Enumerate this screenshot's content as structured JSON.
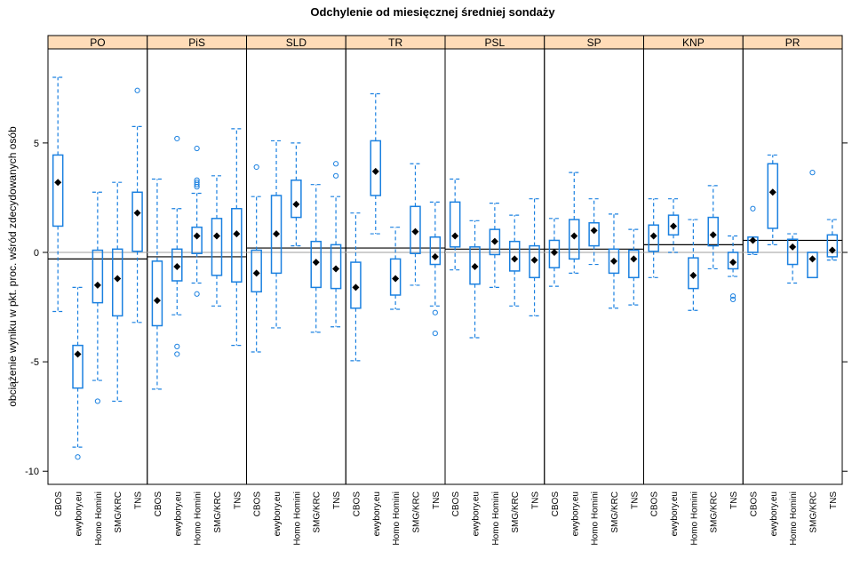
{
  "chart_data": {
    "type": "boxplot",
    "title": "Odchylenie od miesięcznej średniej sondaży",
    "xlabel": "",
    "ylabel": "obciążenie wyniku w pkt. proc. wśród zdecydowanych osób",
    "ylim": [
      -10.6,
      9.3
    ],
    "yticks": [
      -10,
      -5,
      0,
      5
    ],
    "ytick_labels": [
      "-10",
      "-5",
      "0",
      "5"
    ],
    "categories": [
      "CBOS",
      "ewybory.eu",
      "Homo Homini",
      "SMG/KRC",
      "TNS"
    ],
    "reference_line": 0,
    "colors": {
      "box": "#1a80e0",
      "mean_marker": "#000000",
      "strip_bg": "#ffdcb8",
      "reference_line": "#bdbdbd",
      "panel_mean_line": "#000000"
    },
    "panels": [
      {
        "name": "PO",
        "panel_mean": -0.3,
        "boxes": [
          {
            "cat": "CBOS",
            "whisker_low": -2.7,
            "q1": 1.2,
            "mean": 3.2,
            "q3": 4.45,
            "whisker_high": 8.0,
            "outliers": []
          },
          {
            "cat": "ewybory.eu",
            "whisker_low": -8.9,
            "q1": -6.2,
            "mean": -4.65,
            "q3": -4.25,
            "whisker_high": -1.6,
            "outliers": [
              -9.35
            ]
          },
          {
            "cat": "Homo Homini",
            "whisker_low": -5.85,
            "q1": -2.3,
            "mean": -1.5,
            "q3": 0.1,
            "whisker_high": 2.75,
            "outliers": [
              -6.8
            ]
          },
          {
            "cat": "SMG/KRC",
            "whisker_low": -6.8,
            "q1": -2.9,
            "mean": -1.2,
            "q3": 0.15,
            "whisker_high": 3.2,
            "outliers": []
          },
          {
            "cat": "TNS",
            "whisker_low": -3.2,
            "q1": 0.05,
            "mean": 1.8,
            "q3": 2.75,
            "whisker_high": 5.75,
            "outliers": [
              7.4
            ]
          }
        ]
      },
      {
        "name": "PiS",
        "panel_mean": -0.2,
        "boxes": [
          {
            "cat": "CBOS",
            "whisker_low": -6.25,
            "q1": -3.35,
            "mean": -2.2,
            "q3": -0.4,
            "whisker_high": 3.35,
            "outliers": []
          },
          {
            "cat": "ewybory.eu",
            "whisker_low": -2.85,
            "q1": -1.3,
            "mean": -0.65,
            "q3": 0.15,
            "whisker_high": 2.0,
            "outliers": [
              5.2,
              -4.3,
              -4.65
            ]
          },
          {
            "cat": "Homo Homini",
            "whisker_low": -1.4,
            "q1": -0.05,
            "mean": 0.75,
            "q3": 1.15,
            "whisker_high": 2.7,
            "outliers": [
              4.75,
              3.3,
              3.2,
              3.1,
              3.0,
              -1.9
            ]
          },
          {
            "cat": "SMG/KRC",
            "whisker_low": -2.45,
            "q1": -1.05,
            "mean": 0.75,
            "q3": 1.55,
            "whisker_high": 3.5,
            "outliers": []
          },
          {
            "cat": "TNS",
            "whisker_low": -4.25,
            "q1": -1.35,
            "mean": 0.85,
            "q3": 2.0,
            "whisker_high": 5.65,
            "outliers": []
          }
        ]
      },
      {
        "name": "SLD",
        "panel_mean": 0.2,
        "boxes": [
          {
            "cat": "CBOS",
            "whisker_low": -4.55,
            "q1": -1.8,
            "mean": -0.95,
            "q3": 0.1,
            "whisker_high": 2.55,
            "outliers": [
              3.9
            ]
          },
          {
            "cat": "ewybory.eu",
            "whisker_low": -3.45,
            "q1": -0.95,
            "mean": 0.85,
            "q3": 2.6,
            "whisker_high": 5.1,
            "outliers": []
          },
          {
            "cat": "Homo Homini",
            "whisker_low": 0.3,
            "q1": 1.6,
            "mean": 2.2,
            "q3": 3.3,
            "whisker_high": 5.0,
            "outliers": []
          },
          {
            "cat": "SMG/KRC",
            "whisker_low": -3.65,
            "q1": -1.6,
            "mean": -0.45,
            "q3": 0.5,
            "whisker_high": 3.1,
            "outliers": []
          },
          {
            "cat": "TNS",
            "whisker_low": -3.4,
            "q1": -1.65,
            "mean": -0.75,
            "q3": 0.35,
            "whisker_high": 2.55,
            "outliers": [
              4.05,
              3.5
            ]
          }
        ]
      },
      {
        "name": "TR",
        "panel_mean": 0.2,
        "boxes": [
          {
            "cat": "CBOS",
            "whisker_low": -4.95,
            "q1": -2.55,
            "mean": -1.6,
            "q3": -0.45,
            "whisker_high": 1.8,
            "outliers": []
          },
          {
            "cat": "ewybory.eu",
            "whisker_low": 0.85,
            "q1": 2.6,
            "mean": 3.7,
            "q3": 5.1,
            "whisker_high": 7.25,
            "outliers": []
          },
          {
            "cat": "Homo Homini",
            "whisker_low": -2.6,
            "q1": -1.95,
            "mean": -1.2,
            "q3": -0.3,
            "whisker_high": 1.15,
            "outliers": []
          },
          {
            "cat": "SMG/KRC",
            "whisker_low": -1.5,
            "q1": -0.05,
            "mean": 0.95,
            "q3": 2.1,
            "whisker_high": 4.05,
            "outliers": []
          },
          {
            "cat": "TNS",
            "whisker_low": -2.45,
            "q1": -0.55,
            "mean": -0.2,
            "q3": 0.7,
            "whisker_high": 2.3,
            "outliers": [
              -2.75,
              -3.7
            ]
          }
        ]
      },
      {
        "name": "PSL",
        "panel_mean": 0.15,
        "boxes": [
          {
            "cat": "CBOS",
            "whisker_low": -0.8,
            "q1": 0.25,
            "mean": 0.75,
            "q3": 2.3,
            "whisker_high": 3.35,
            "outliers": []
          },
          {
            "cat": "ewybory.eu",
            "whisker_low": -3.9,
            "q1": -1.45,
            "mean": -0.65,
            "q3": 0.25,
            "whisker_high": 1.45,
            "outliers": []
          },
          {
            "cat": "Homo Homini",
            "whisker_low": -1.6,
            "q1": -0.1,
            "mean": 0.5,
            "q3": 1.05,
            "whisker_high": 2.25,
            "outliers": []
          },
          {
            "cat": "SMG/KRC",
            "whisker_low": -2.45,
            "q1": -0.85,
            "mean": -0.3,
            "q3": 0.5,
            "whisker_high": 1.7,
            "outliers": []
          },
          {
            "cat": "TNS",
            "whisker_low": -2.9,
            "q1": -1.15,
            "mean": -0.35,
            "q3": 0.3,
            "whisker_high": 2.45,
            "outliers": []
          }
        ]
      },
      {
        "name": "SP",
        "panel_mean": 0.15,
        "boxes": [
          {
            "cat": "CBOS",
            "whisker_low": -1.55,
            "q1": -0.7,
            "mean": 0.0,
            "q3": 0.55,
            "whisker_high": 1.55,
            "outliers": []
          },
          {
            "cat": "ewybory.eu",
            "whisker_low": -0.95,
            "q1": -0.3,
            "mean": 0.75,
            "q3": 1.5,
            "whisker_high": 3.65,
            "outliers": []
          },
          {
            "cat": "Homo Homini",
            "whisker_low": -0.55,
            "q1": 0.3,
            "mean": 1.0,
            "q3": 1.35,
            "whisker_high": 2.45,
            "outliers": []
          },
          {
            "cat": "SMG/KRC",
            "whisker_low": -2.55,
            "q1": -0.95,
            "mean": -0.4,
            "q3": 0.15,
            "whisker_high": 1.75,
            "outliers": []
          },
          {
            "cat": "TNS",
            "whisker_low": -2.4,
            "q1": -1.15,
            "mean": -0.3,
            "q3": 0.1,
            "whisker_high": 1.05,
            "outliers": []
          }
        ]
      },
      {
        "name": "KNP",
        "panel_mean": 0.35,
        "boxes": [
          {
            "cat": "CBOS",
            "whisker_low": -1.15,
            "q1": 0.05,
            "mean": 0.75,
            "q3": 1.25,
            "whisker_high": 2.45,
            "outliers": []
          },
          {
            "cat": "ewybory.eu",
            "whisker_low": 0.0,
            "q1": 0.8,
            "mean": 1.2,
            "q3": 1.7,
            "whisker_high": 2.45,
            "outliers": []
          },
          {
            "cat": "Homo Homini",
            "whisker_low": -2.65,
            "q1": -1.65,
            "mean": -1.05,
            "q3": -0.25,
            "whisker_high": 1.5,
            "outliers": []
          },
          {
            "cat": "SMG/KRC",
            "whisker_low": -0.75,
            "q1": 0.3,
            "mean": 0.8,
            "q3": 1.6,
            "whisker_high": 3.05,
            "outliers": []
          },
          {
            "cat": "TNS",
            "whisker_low": -1.1,
            "q1": -0.75,
            "mean": -0.45,
            "q3": 0.0,
            "whisker_high": 0.75,
            "outliers": [
              -2.0,
              -2.15
            ]
          }
        ]
      },
      {
        "name": "PR",
        "panel_mean": 0.55,
        "boxes": [
          {
            "cat": "CBOS",
            "whisker_low": -0.1,
            "q1": 0.0,
            "mean": 0.55,
            "q3": 0.7,
            "whisker_high": 0.7,
            "outliers": [
              2.0
            ]
          },
          {
            "cat": "ewybory.eu",
            "whisker_low": 0.35,
            "q1": 1.1,
            "mean": 2.75,
            "q3": 4.05,
            "whisker_high": 4.45,
            "outliers": []
          },
          {
            "cat": "Homo Homini",
            "whisker_low": -1.4,
            "q1": -0.55,
            "mean": 0.25,
            "q3": 0.6,
            "whisker_high": 0.85,
            "outliers": []
          },
          {
            "cat": "SMG/KRC",
            "whisker_low": -1.15,
            "q1": -1.15,
            "mean": -0.3,
            "q3": 0.0,
            "whisker_high": 0.0,
            "outliers": [
              3.65
            ]
          },
          {
            "cat": "TNS",
            "whisker_low": -0.35,
            "q1": -0.2,
            "mean": 0.1,
            "q3": 0.8,
            "whisker_high": 1.5,
            "outliers": []
          }
        ]
      }
    ]
  }
}
